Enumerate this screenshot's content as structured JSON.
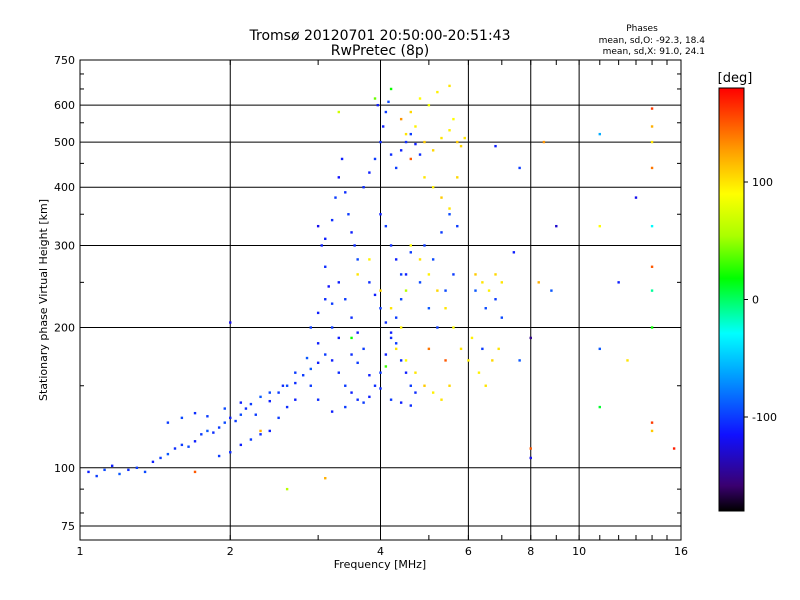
{
  "chart_data": {
    "type": "scatter",
    "title": "Tromsø 20120701 20:50:00-20:51:43",
    "subtitle": "RwPretec (8p)",
    "xlabel": "Frequency [MHz]",
    "ylabel": "Stationary phase Virtual Height [km]",
    "x_scale": "log",
    "y_scale": "log",
    "xlim": [
      1,
      16
    ],
    "ylim": [
      70,
      750
    ],
    "x_ticks": [
      1,
      2,
      4,
      6,
      8,
      10,
      16
    ],
    "y_ticks": [
      75,
      100,
      200,
      300,
      400,
      500,
      600,
      750
    ],
    "grid": true,
    "phase_box": {
      "heading": "Phases",
      "line_o": "mean, sd,O: -92.3, 18.4",
      "line_x": "mean, sd,X:  91.0, 24.1"
    },
    "colorbar": {
      "label": "[deg]",
      "ticks": [
        100,
        0,
        -100
      ],
      "range": [
        -180,
        180
      ],
      "colormap": "rainbow"
    },
    "series": [
      {
        "values": [
          [
            1.04,
            98,
            -110
          ],
          [
            1.08,
            96,
            -100
          ],
          [
            1.12,
            99,
            -95
          ],
          [
            1.16,
            101,
            -110
          ],
          [
            1.2,
            97,
            -90
          ],
          [
            1.25,
            99,
            -105
          ],
          [
            1.3,
            100,
            -100
          ],
          [
            1.35,
            98,
            -95
          ],
          [
            1.4,
            103,
            -110
          ],
          [
            1.45,
            105,
            -100
          ],
          [
            1.5,
            107,
            -90
          ],
          [
            1.55,
            110,
            -105
          ],
          [
            1.6,
            112,
            -100
          ],
          [
            1.65,
            111,
            -95
          ],
          [
            1.7,
            114,
            -110
          ],
          [
            1.75,
            118,
            -100
          ],
          [
            1.8,
            120,
            -90
          ],
          [
            1.85,
            119,
            -105
          ],
          [
            1.9,
            122,
            -100
          ],
          [
            1.95,
            125,
            -95
          ],
          [
            2.0,
            128,
            -110
          ],
          [
            2.05,
            126,
            -100
          ],
          [
            2.1,
            130,
            -95
          ],
          [
            2.15,
            134,
            -105
          ],
          [
            2.2,
            137,
            -100
          ],
          [
            2.3,
            142,
            -90
          ],
          [
            2.4,
            139,
            -110
          ],
          [
            2.5,
            145,
            -100
          ],
          [
            2.6,
            150,
            -95
          ],
          [
            2.7,
            152,
            -105
          ],
          [
            2.8,
            158,
            -100
          ],
          [
            2.9,
            163,
            -90
          ],
          [
            3.0,
            168,
            -110
          ],
          [
            3.1,
            175,
            -100
          ],
          [
            1.5,
            125,
            -100
          ],
          [
            1.6,
            128,
            -95
          ],
          [
            1.7,
            131,
            -105
          ],
          [
            1.8,
            129,
            -100
          ],
          [
            1.95,
            134,
            -95
          ],
          [
            2.1,
            138,
            -110
          ],
          [
            2.25,
            130,
            -100
          ],
          [
            2.4,
            145,
            -95
          ],
          [
            2.55,
            150,
            -105
          ],
          [
            2.7,
            160,
            -100
          ],
          [
            2.85,
            172,
            -90
          ],
          [
            3.0,
            185,
            -110
          ],
          [
            3.0,
            330,
            -120
          ],
          [
            3.05,
            300,
            -110
          ],
          [
            3.1,
            270,
            -105
          ],
          [
            3.15,
            245,
            -115
          ],
          [
            3.2,
            225,
            -100
          ],
          [
            3.1,
            310,
            -110
          ],
          [
            3.2,
            340,
            -105
          ],
          [
            3.25,
            380,
            -100
          ],
          [
            3.3,
            420,
            -115
          ],
          [
            3.35,
            460,
            -110
          ],
          [
            3.4,
            390,
            -105
          ],
          [
            3.45,
            350,
            -100
          ],
          [
            3.5,
            320,
            -110
          ],
          [
            3.55,
            300,
            -105
          ],
          [
            3.6,
            280,
            -95
          ],
          [
            3.3,
            250,
            -110
          ],
          [
            3.4,
            230,
            -100
          ],
          [
            3.5,
            210,
            -105
          ],
          [
            3.6,
            195,
            -110
          ],
          [
            3.7,
            180,
            -100
          ],
          [
            3.2,
            170,
            -110
          ],
          [
            3.3,
            160,
            -105
          ],
          [
            3.4,
            150,
            -100
          ],
          [
            3.5,
            145,
            -110
          ],
          [
            3.6,
            140,
            -105
          ],
          [
            3.7,
            138,
            -100
          ],
          [
            3.8,
            142,
            -110
          ],
          [
            3.9,
            150,
            -105
          ],
          [
            4.0,
            160,
            -100
          ],
          [
            4.1,
            175,
            -110
          ],
          [
            4.2,
            190,
            -105
          ],
          [
            4.3,
            210,
            -100
          ],
          [
            4.4,
            230,
            -95
          ],
          [
            4.5,
            260,
            -110
          ],
          [
            4.6,
            290,
            -100
          ],
          [
            3.7,
            400,
            -105
          ],
          [
            3.8,
            430,
            -110
          ],
          [
            3.9,
            460,
            -100
          ],
          [
            4.0,
            500,
            -105
          ],
          [
            4.05,
            540,
            -110
          ],
          [
            4.1,
            580,
            -100
          ],
          [
            4.15,
            610,
            -95
          ],
          [
            3.95,
            600,
            -110
          ],
          [
            4.2,
            470,
            -105
          ],
          [
            4.3,
            440,
            -100
          ],
          [
            4.4,
            480,
            -110
          ],
          [
            4.5,
            500,
            -105
          ],
          [
            4.6,
            520,
            -100
          ],
          [
            4.7,
            495,
            -110
          ],
          [
            4.8,
            470,
            -105
          ],
          [
            4.0,
            350,
            -110
          ],
          [
            4.1,
            330,
            -100
          ],
          [
            4.2,
            300,
            -105
          ],
          [
            4.3,
            280,
            -110
          ],
          [
            4.4,
            260,
            -100
          ],
          [
            3.8,
            250,
            -105
          ],
          [
            3.9,
            235,
            -110
          ],
          [
            4.0,
            220,
            -100
          ],
          [
            4.1,
            205,
            -105
          ],
          [
            4.2,
            195,
            -110
          ],
          [
            4.3,
            185,
            -100
          ],
          [
            4.4,
            170,
            -105
          ],
          [
            4.5,
            160,
            -110
          ],
          [
            4.6,
            150,
            -100
          ],
          [
            4.7,
            145,
            -105
          ],
          [
            2.9,
            200,
            -100
          ],
          [
            3.0,
            215,
            -110
          ],
          [
            3.1,
            230,
            -105
          ],
          [
            3.2,
            200,
            -100
          ],
          [
            3.3,
            190,
            -110
          ],
          [
            3.5,
            175,
            -105
          ],
          [
            3.6,
            168,
            -100
          ],
          [
            3.8,
            158,
            -110
          ],
          [
            4.0,
            148,
            -105
          ],
          [
            4.2,
            140,
            -100
          ],
          [
            4.4,
            138,
            -110
          ],
          [
            4.6,
            136,
            -105
          ],
          [
            3.4,
            135,
            -100
          ],
          [
            3.2,
            132,
            -110
          ],
          [
            3.0,
            140,
            -105
          ],
          [
            2.9,
            150,
            -100
          ],
          [
            2.7,
            140,
            -110
          ],
          [
            2.6,
            135,
            -105
          ],
          [
            2.5,
            128,
            -100
          ],
          [
            2.4,
            120,
            -110
          ],
          [
            2.3,
            118,
            -105
          ],
          [
            2.2,
            115,
            -100
          ],
          [
            2.1,
            112,
            -110
          ],
          [
            2.0,
            108,
            -105
          ],
          [
            1.9,
            106,
            -100
          ],
          [
            4.8,
            250,
            -95
          ],
          [
            5.0,
            220,
            -90
          ],
          [
            5.2,
            200,
            -100
          ],
          [
            5.4,
            240,
            -95
          ],
          [
            5.6,
            260,
            -100
          ],
          [
            4.9,
            300,
            -100
          ],
          [
            5.1,
            280,
            -95
          ],
          [
            5.3,
            320,
            -100
          ],
          [
            5.5,
            350,
            -95
          ],
          [
            5.7,
            330,
            -100
          ],
          [
            6.2,
            240,
            -90
          ],
          [
            6.5,
            220,
            -95
          ],
          [
            6.8,
            230,
            -100
          ],
          [
            7.0,
            210,
            -95
          ],
          [
            6.4,
            180,
            -100
          ]
        ]
      },
      {
        "values": [
          [
            4.5,
            520,
            100
          ],
          [
            4.7,
            540,
            95
          ],
          [
            4.9,
            500,
            110
          ],
          [
            5.1,
            480,
            105
          ],
          [
            5.3,
            510,
            100
          ],
          [
            5.5,
            530,
            95
          ],
          [
            5.7,
            500,
            110
          ],
          [
            5.8,
            490,
            105
          ],
          [
            5.9,
            510,
            100
          ],
          [
            5.6,
            560,
            90
          ],
          [
            5.0,
            600,
            85
          ],
          [
            5.2,
            640,
            95
          ],
          [
            5.5,
            660,
            100
          ],
          [
            4.8,
            620,
            90
          ],
          [
            4.6,
            580,
            105
          ],
          [
            4.9,
            420,
            100
          ],
          [
            5.1,
            400,
            95
          ],
          [
            5.3,
            380,
            110
          ],
          [
            5.5,
            360,
            100
          ],
          [
            5.7,
            420,
            105
          ],
          [
            4.6,
            300,
            90
          ],
          [
            4.8,
            280,
            100
          ],
          [
            5.0,
            260,
            95
          ],
          [
            5.2,
            240,
            105
          ],
          [
            5.4,
            220,
            100
          ],
          [
            5.6,
            200,
            90
          ],
          [
            5.8,
            180,
            100
          ],
          [
            6.0,
            170,
            95
          ],
          [
            5.5,
            150,
            105
          ],
          [
            5.3,
            140,
            100
          ],
          [
            5.1,
            145,
            95
          ],
          [
            4.9,
            150,
            110
          ],
          [
            4.7,
            160,
            100
          ],
          [
            4.5,
            170,
            90
          ],
          [
            4.3,
            180,
            100
          ],
          [
            6.2,
            260,
            110
          ],
          [
            6.4,
            250,
            100
          ],
          [
            6.6,
            240,
            95
          ],
          [
            6.8,
            260,
            105
          ],
          [
            7.0,
            250,
            100
          ],
          [
            6.3,
            160,
            95
          ],
          [
            6.5,
            150,
            100
          ],
          [
            6.7,
            170,
            105
          ],
          [
            6.9,
            180,
            100
          ],
          [
            6.1,
            190,
            95
          ],
          [
            3.6,
            260,
            100
          ],
          [
            3.8,
            280,
            95
          ],
          [
            4.0,
            240,
            105
          ],
          [
            4.2,
            220,
            100
          ],
          [
            4.4,
            200,
            95
          ],
          [
            3.5,
            190,
            20
          ],
          [
            4.1,
            165,
            30
          ],
          [
            4.5,
            240,
            60
          ],
          [
            5.0,
            180,
            140
          ],
          [
            5.4,
            170,
            150
          ],
          [
            3.3,
            580,
            70
          ],
          [
            3.9,
            620,
            40
          ],
          [
            4.2,
            650,
            20
          ],
          [
            4.4,
            560,
            130
          ],
          [
            4.6,
            460,
            150
          ]
        ]
      },
      {
        "values": [
          [
            14.0,
            590,
            160
          ],
          [
            14.0,
            540,
            120
          ],
          [
            14.0,
            500,
            100
          ],
          [
            14.0,
            440,
            140
          ],
          [
            14.0,
            330,
            -30
          ],
          [
            14.0,
            270,
            150
          ],
          [
            14.0,
            240,
            -10
          ],
          [
            14.0,
            200,
            20
          ],
          [
            14.0,
            125,
            160
          ],
          [
            14.0,
            120,
            110
          ],
          [
            11.0,
            520,
            -60
          ],
          [
            11.0,
            330,
            90
          ],
          [
            11.0,
            180,
            -90
          ],
          [
            11.0,
            135,
            10
          ],
          [
            13.0,
            380,
            -120
          ],
          [
            12.5,
            170,
            100
          ],
          [
            12.0,
            250,
            -110
          ],
          [
            8.5,
            500,
            130
          ],
          [
            8.3,
            250,
            120
          ],
          [
            8.0,
            190,
            -150
          ],
          [
            8.0,
            110,
            150
          ],
          [
            8.0,
            105,
            -120
          ],
          [
            9.0,
            330,
            -130
          ],
          [
            8.8,
            240,
            -90
          ],
          [
            7.6,
            440,
            -100
          ],
          [
            7.4,
            290,
            -110
          ],
          [
            7.6,
            170,
            -90
          ],
          [
            6.8,
            490,
            -110
          ],
          [
            15.5,
            110,
            170
          ],
          [
            2.0,
            205,
            -120
          ],
          [
            1.7,
            98,
            150
          ],
          [
            2.6,
            90,
            60
          ],
          [
            3.1,
            95,
            120
          ],
          [
            2.3,
            120,
            120
          ]
        ]
      }
    ]
  }
}
